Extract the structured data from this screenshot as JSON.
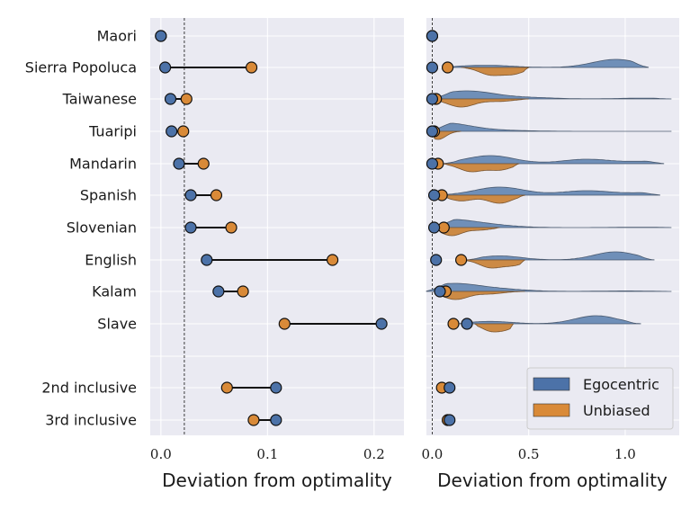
{
  "chart_data": [
    {
      "type": "dumbbell",
      "xlabel": "Deviation from optimality",
      "xlim": [
        -0.01,
        0.228
      ],
      "xticks": [
        "0.0",
        "0.1",
        "0.2"
      ],
      "xtick_values": [
        0.0,
        0.1,
        0.2
      ],
      "reference_line_x": 0.022,
      "categories": [
        "Maori",
        "Sierra Popoluca",
        "Taiwanese",
        "Tuaripi",
        "Mandarin",
        "Spanish",
        "Slovenian",
        "English",
        "Kalam",
        "Slave",
        "2nd inclusive",
        "3rd inclusive"
      ],
      "series": [
        {
          "name": "Egocentric",
          "values": [
            0.0,
            0.004,
            0.009,
            0.01,
            0.017,
            0.028,
            0.028,
            0.043,
            0.054,
            0.207,
            0.108,
            0.108
          ]
        },
        {
          "name": "Unbiased",
          "values": [
            0.0,
            0.085,
            0.024,
            0.021,
            0.04,
            0.052,
            0.066,
            0.161,
            0.077,
            0.116,
            0.062,
            0.087
          ]
        }
      ]
    },
    {
      "type": "violin",
      "xlabel": "Deviation from optimality",
      "xlim": [
        -0.03,
        1.28
      ],
      "xticks": [
        "0.0",
        "0.5",
        "1.0"
      ],
      "xtick_values": [
        0.0,
        0.5,
        1.0
      ],
      "reference_line_x": 0.0,
      "categories": [
        "Maori",
        "Sierra Popoluca",
        "Taiwanese",
        "Tuaripi",
        "Mandarin",
        "Spanish",
        "Slovenian",
        "English",
        "Kalam",
        "Slave",
        "2nd inclusive",
        "3rd inclusive"
      ],
      "legend": {
        "position": "lower-right",
        "entries": [
          "Egocentric",
          "Unbiased"
        ]
      },
      "series": [
        {
          "name": "Egocentric",
          "means": [
            0.0,
            0.0,
            0.0,
            0.0,
            0.0,
            0.01,
            0.01,
            0.02,
            0.04,
            0.18,
            0.09,
            0.09
          ],
          "distributions": [
            null,
            {
              "min": 0.05,
              "max": 1.12,
              "peaks": [
                [
                  0.1,
                  0.08
                ],
                [
                  0.3,
                  0.25
                ],
                [
                  0.95,
                  1.0
                ]
              ]
            },
            {
              "min": 0.0,
              "max": 1.24,
              "peaks": [
                [
                  0.05,
                  0.3
                ],
                [
                  0.2,
                  1.0
                ],
                [
                  0.5,
                  0.2
                ],
                [
                  1.1,
                  0.12
                ]
              ]
            },
            {
              "min": 0.0,
              "max": 1.24,
              "peaks": [
                [
                  0.03,
                  0.8
                ],
                [
                  0.15,
                  0.25
                ],
                [
                  0.4,
                  0.08
                ]
              ]
            },
            {
              "min": 0.05,
              "max": 1.2,
              "peaks": [
                [
                  0.3,
                  1.0
                ],
                [
                  0.8,
                  0.55
                ],
                [
                  1.15,
                  0.3
                ]
              ]
            },
            {
              "min": 0.0,
              "max": 1.18,
              "peaks": [
                [
                  0.35,
                  1.0
                ],
                [
                  0.8,
                  0.55
                ],
                [
                  1.15,
                  0.3
                ]
              ]
            },
            {
              "min": 0.02,
              "max": 1.24,
              "peaks": [
                [
                  0.08,
                  1.0
                ],
                [
                  0.3,
                  0.3
                ],
                [
                  1.1,
                  0.05
                ]
              ]
            },
            {
              "min": 0.18,
              "max": 1.15,
              "peaks": [
                [
                  0.35,
                  0.5
                ],
                [
                  0.95,
                  1.0
                ]
              ]
            },
            {
              "min": -0.03,
              "max": 1.24,
              "peaks": [
                [
                  0.1,
                  0.9
                ],
                [
                  0.35,
                  0.25
                ],
                [
                  1.0,
                  0.06
                ]
              ]
            },
            {
              "min": 0.12,
              "max": 1.08,
              "peaks": [
                [
                  0.3,
                  0.3
                ],
                [
                  0.85,
                  1.0
                ]
              ]
            },
            null,
            null
          ]
        },
        {
          "name": "Unbiased",
          "means": [
            0.0,
            0.08,
            0.02,
            0.01,
            0.03,
            0.05,
            0.06,
            0.15,
            0.07,
            0.11,
            0.05,
            0.08
          ],
          "distributions": [
            null,
            {
              "min": 0.15,
              "max": 0.5,
              "peaks": [
                [
                  0.3,
                  1.0
                ],
                [
                  0.42,
                  0.9
                ]
              ]
            },
            {
              "min": 0.0,
              "max": 0.5,
              "peaks": [
                [
                  0.15,
                  1.0
                ],
                [
                  0.35,
                  0.3
                ]
              ]
            },
            {
              "min": 0.0,
              "max": 0.15,
              "peaks": [
                [
                  0.03,
                  1.0
                ]
              ]
            },
            {
              "min": 0.05,
              "max": 0.45,
              "peaks": [
                [
                  0.2,
                  1.0
                ],
                [
                  0.35,
                  0.8
                ]
              ]
            },
            {
              "min": 0.05,
              "max": 0.48,
              "peaks": [
                [
                  0.15,
                  0.7
                ],
                [
                  0.35,
                  1.0
                ]
              ]
            },
            {
              "min": 0.02,
              "max": 0.35,
              "peaks": [
                [
                  0.1,
                  1.0
                ],
                [
                  0.25,
                  0.3
                ]
              ]
            },
            {
              "min": 0.15,
              "max": 0.48,
              "peaks": [
                [
                  0.3,
                  1.0
                ],
                [
                  0.42,
                  0.7
                ]
              ]
            },
            {
              "min": 0.02,
              "max": 0.48,
              "peaks": [
                [
                  0.12,
                  1.0
                ],
                [
                  0.3,
                  0.3
                ]
              ]
            },
            {
              "min": 0.22,
              "max": 0.42,
              "peaks": [
                [
                  0.3,
                  1.0
                ],
                [
                  0.38,
                  0.8
                ]
              ]
            },
            null,
            null
          ]
        }
      ]
    }
  ],
  "colors": {
    "egocentric": "#4c72a8",
    "unbiased": "#d98a38",
    "egocentric_violin": "#6f8fb8",
    "unbiased_violin": "#cc8a45",
    "panel_background": "#eaeaf2",
    "grid": "#ffffff"
  }
}
